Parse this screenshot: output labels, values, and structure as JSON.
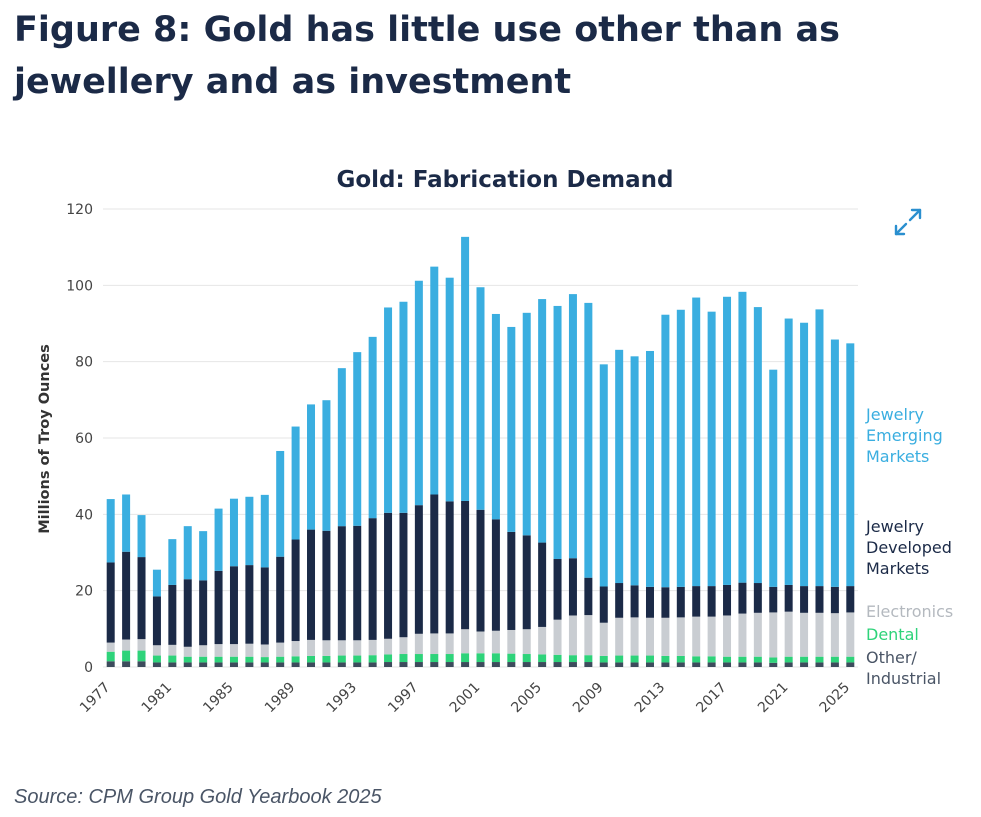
{
  "figure": {
    "title": "Figure 8: Gold has little use other than as jewellery and as investment",
    "source": "Source: CPM Group Gold Yearbook 2025"
  },
  "icons": {
    "expand": "expand-arrows-icon"
  },
  "colors": {
    "other_industrial": "#3d4b5c",
    "dental": "#2ed37a",
    "electronics": "#c9cdd2",
    "jewelry_developed": "#1b2a47",
    "jewelry_emerging": "#3aaee0",
    "title": "#1b2a47",
    "axis_text": "#444444",
    "grid": "#e6e6e6"
  },
  "chart_data": {
    "type": "bar",
    "stacked": true,
    "title": "Gold: Fabrication Demand",
    "ylabel": "Millions of Troy Ounces",
    "xlabel": "",
    "ylim": [
      0,
      120
    ],
    "yticks": [
      0,
      20,
      40,
      60,
      80,
      100,
      120
    ],
    "grid": true,
    "legend_position": "right",
    "x_tick_labels": [
      "1977",
      "1981",
      "1985",
      "1989",
      "1993",
      "1997",
      "2001",
      "2005",
      "2009",
      "2013",
      "2017",
      "2021",
      "2025"
    ],
    "categories": [
      1977,
      1978,
      1979,
      1980,
      1981,
      1982,
      1983,
      1984,
      1985,
      1986,
      1987,
      1988,
      1989,
      1990,
      1991,
      1992,
      1993,
      1994,
      1995,
      1996,
      1997,
      1998,
      1999,
      2000,
      2001,
      2002,
      2003,
      2004,
      2005,
      2006,
      2007,
      2008,
      2009,
      2010,
      2011,
      2012,
      2013,
      2014,
      2015,
      2016,
      2017,
      2018,
      2019,
      2020,
      2021,
      2022,
      2023,
      2024,
      2025
    ],
    "series": [
      {
        "name": "Other/ Industrial",
        "color": "#3d4b5c",
        "values": [
          1.5,
          1.5,
          1.5,
          1.2,
          1.2,
          1.2,
          1.2,
          1.2,
          1.2,
          1.2,
          1.2,
          1.2,
          1.2,
          1.2,
          1.2,
          1.2,
          1.2,
          1.2,
          1.3,
          1.3,
          1.3,
          1.3,
          1.3,
          1.3,
          1.3,
          1.3,
          1.3,
          1.3,
          1.3,
          1.3,
          1.3,
          1.3,
          1.2,
          1.2,
          1.2,
          1.2,
          1.2,
          1.2,
          1.2,
          1.2,
          1.2,
          1.2,
          1.2,
          1.1,
          1.2,
          1.2,
          1.2,
          1.2,
          1.2
        ]
      },
      {
        "name": "Dental",
        "color": "#2ed37a",
        "values": [
          2.5,
          2.8,
          2.8,
          1.8,
          1.8,
          1.5,
          1.5,
          1.5,
          1.5,
          1.5,
          1.4,
          1.5,
          1.6,
          1.7,
          1.7,
          1.8,
          1.8,
          1.9,
          2.0,
          2.1,
          2.1,
          2.1,
          2.1,
          2.3,
          2.3,
          2.3,
          2.2,
          2.1,
          2.0,
          1.9,
          1.8,
          1.8,
          1.7,
          1.8,
          1.8,
          1.8,
          1.7,
          1.7,
          1.6,
          1.6,
          1.5,
          1.5,
          1.5,
          1.4,
          1.5,
          1.5,
          1.5,
          1.5,
          1.5
        ]
      },
      {
        "name": "Electronics",
        "color": "#c9cdd2",
        "values": [
          2.4,
          2.9,
          3.0,
          2.7,
          2.8,
          2.6,
          3.0,
          3.3,
          3.3,
          3.4,
          3.3,
          3.7,
          4.0,
          4.2,
          4.1,
          4.0,
          4.0,
          4.0,
          4.1,
          4.4,
          5.3,
          5.4,
          5.4,
          6.3,
          5.7,
          5.9,
          6.2,
          6.5,
          7.2,
          9.2,
          10.4,
          10.5,
          8.7,
          9.9,
          10.0,
          9.9,
          10.0,
          10.1,
          10.4,
          10.4,
          10.8,
          11.3,
          11.5,
          11.8,
          11.8,
          11.5,
          11.5,
          11.4,
          11.6
        ]
      },
      {
        "name": "Jewelry Developed Markets",
        "color": "#1b2a47",
        "values": [
          21.0,
          23.0,
          21.5,
          12.8,
          15.7,
          17.7,
          17.0,
          19.2,
          20.4,
          20.6,
          20.2,
          22.5,
          26.6,
          28.9,
          28.7,
          29.9,
          30.0,
          31.9,
          33.0,
          32.6,
          33.7,
          36.4,
          34.6,
          33.6,
          31.9,
          29.2,
          25.7,
          24.6,
          22.1,
          15.9,
          15.0,
          9.8,
          9.5,
          9.1,
          8.4,
          8.1,
          8.0,
          8.0,
          8.0,
          8.0,
          8.0,
          8.1,
          7.8,
          6.7,
          7.0,
          7.0,
          7.0,
          6.9,
          6.9
        ]
      },
      {
        "name": "Jewelry Emerging Markets",
        "color": "#3aaee0",
        "values": [
          16.6,
          15.0,
          11.0,
          7.0,
          12.0,
          13.9,
          12.9,
          16.3,
          17.7,
          17.9,
          19.0,
          27.7,
          29.6,
          32.8,
          34.2,
          41.4,
          45.5,
          47.5,
          53.8,
          55.3,
          58.8,
          59.7,
          58.6,
          69.2,
          58.3,
          53.8,
          53.7,
          58.3,
          63.8,
          66.3,
          69.2,
          72.0,
          58.2,
          61.1,
          60.0,
          61.8,
          71.4,
          72.6,
          75.6,
          71.9,
          75.5,
          76.2,
          72.3,
          56.9,
          69.8,
          69.0,
          72.5,
          64.8,
          63.6
        ]
      }
    ]
  },
  "legend": {
    "emerging": [
      "Jewelry",
      "Emerging",
      "Markets"
    ],
    "developed": [
      "Jewelry",
      "Developed",
      "Markets"
    ],
    "electronics": [
      "Electronics"
    ],
    "dental": [
      "Dental"
    ],
    "other": [
      "Other/",
      "Industrial"
    ]
  }
}
